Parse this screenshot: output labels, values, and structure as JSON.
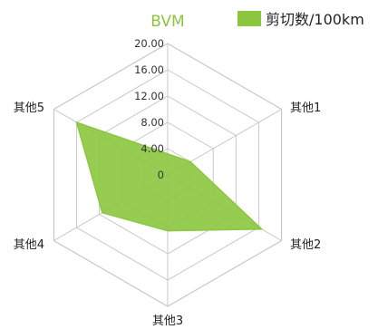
{
  "chart_data": {
    "type": "radar",
    "title": "BVM",
    "axes": [
      "其他1",
      "其他2",
      "其他3",
      "其他4",
      "其他5"
    ],
    "series": [
      {
        "name": "剪切数/100km",
        "values": [
          4.0,
          16.5,
          8.5,
          11.5,
          16.0
        ],
        "color": "#8cc63f"
      }
    ],
    "rlim": [
      0,
      20
    ],
    "ticks": [
      "0",
      "4.00",
      "8.00",
      "12.00",
      "16.00",
      "20.00"
    ],
    "grid": true,
    "legend": "top-right"
  }
}
